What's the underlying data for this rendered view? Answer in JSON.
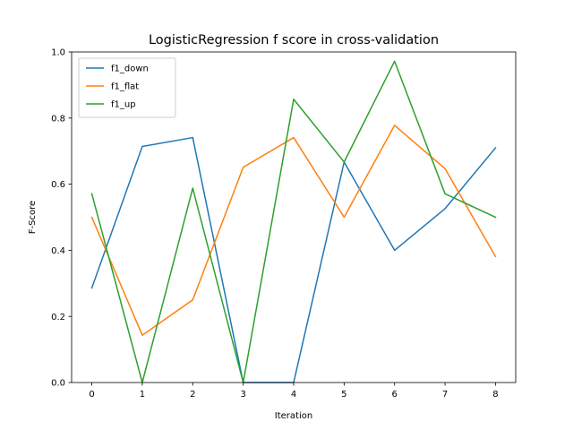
{
  "chart_data": {
    "type": "line",
    "title": "LogisticRegression f score in cross-validation",
    "xlabel": "Iteration",
    "ylabel": "F-Score",
    "x": [
      0,
      1,
      2,
      3,
      4,
      5,
      6,
      7,
      8
    ],
    "xlim": [
      -0.4,
      8.4
    ],
    "ylim": [
      0.0,
      1.0
    ],
    "xticks": [
      "0",
      "1",
      "2",
      "3",
      "4",
      "5",
      "6",
      "7",
      "8"
    ],
    "yticks": [
      "0.0",
      "0.2",
      "0.4",
      "0.6",
      "0.8",
      "1.0"
    ],
    "grid": false,
    "legend_position": "upper-left",
    "series": [
      {
        "name": "f1_down",
        "color": "#1f77b4",
        "values": [
          0.286,
          0.714,
          0.741,
          0.0,
          0.0,
          0.667,
          0.4,
          0.526,
          0.71
        ]
      },
      {
        "name": "f1_flat",
        "color": "#ff7f0e",
        "values": [
          0.5,
          0.143,
          0.25,
          0.651,
          0.741,
          0.5,
          0.778,
          0.647,
          0.381
        ]
      },
      {
        "name": "f1_up",
        "color": "#2ca02c",
        "values": [
          0.571,
          0.0,
          0.588,
          0.0,
          0.857,
          0.667,
          0.972,
          0.571,
          0.5
        ]
      }
    ]
  }
}
